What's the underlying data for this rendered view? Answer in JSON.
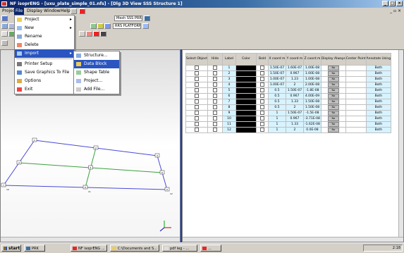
{
  "window": {
    "title": "NF isoprENG - [uxu_plate_simple_01.nfs] - [Dlg 3D View SSS Structure 1]"
  },
  "menubar": [
    "Projec",
    "File",
    "Display",
    "Window",
    "Help"
  ],
  "toolbar": {
    "selector1": "Mesh SSS PRR",
    "selector2": "RRS PLATFORM"
  },
  "file_menu": [
    {
      "label": "Project",
      "icon": "folder-icon",
      "submenu": true
    },
    {
      "label": "New",
      "icon": "new-icon",
      "submenu": true
    },
    {
      "label": "Rename",
      "icon": "rename-icon",
      "submenu": false
    },
    {
      "label": "Delete",
      "icon": "delete-icon",
      "submenu": false
    },
    {
      "label": "Import",
      "icon": "import-icon",
      "submenu": true,
      "highlighted": true
    },
    {
      "label": "Printer Setup",
      "icon": "printer-icon",
      "submenu": false
    },
    {
      "label": "Save Graphics To File",
      "icon": "save-icon",
      "submenu": false
    },
    {
      "label": "Options",
      "icon": "options-icon",
      "submenu": false
    },
    {
      "label": "Exit",
      "icon": "exit-icon",
      "submenu": false
    }
  ],
  "import_submenu": [
    {
      "label": "Structure...",
      "icon": "structure-icon"
    },
    {
      "label": "Data Block",
      "icon": "datablock-icon",
      "highlighted": true
    },
    {
      "label": "Shape Table",
      "icon": "shape-icon"
    },
    {
      "label": "Project...",
      "icon": "project-icon"
    },
    {
      "label": "Add File...",
      "icon": "addfile-icon"
    }
  ],
  "table": {
    "headers": [
      "Select Object",
      "Hide",
      "Label",
      "Color",
      "Bold",
      "X coord m",
      "Y coord m",
      "Z coord m",
      "Display Always",
      "Center Point",
      "Annotate Using"
    ],
    "rows": [
      {
        "label": "1",
        "x": "1.50E-07",
        "y": "1.60E-07",
        "z": "1.00E-08",
        "annot": "Both"
      },
      {
        "label": "2",
        "x": "1.50E-07",
        "y": "0.967",
        "z": "1.00E-08",
        "annot": "Both"
      },
      {
        "label": "3",
        "x": "1.00E-07",
        "y": "1.23",
        "z": "1.00E-08",
        "annot": "Both"
      },
      {
        "label": "4",
        "x": "1.00E-07",
        "y": "2",
        "z": "2.00E-08",
        "annot": "Both"
      },
      {
        "label": "5",
        "x": "0.5",
        "y": "1.50E-07",
        "z": "-1.8E-08",
        "annot": "Both"
      },
      {
        "label": "6",
        "x": "0.5",
        "y": "0.967",
        "z": "4.00E-09",
        "annot": "Both"
      },
      {
        "label": "7",
        "x": "0.5",
        "y": "1.33",
        "z": "1.50E-08",
        "annot": "Both"
      },
      {
        "label": "8",
        "x": "0.5",
        "y": "2",
        "z": "1.50E-08",
        "annot": "Both"
      },
      {
        "label": "9",
        "x": "1",
        "y": "1.50E-07",
        "z": "-1.5E-08",
        "annot": "Both"
      },
      {
        "label": "10",
        "x": "1",
        "y": "0.967",
        "z": "-3.71E-08",
        "annot": "Both"
      },
      {
        "label": "11",
        "x": "1",
        "y": "1.33",
        "z": "-1.62E-08",
        "annot": "Both"
      },
      {
        "label": "12",
        "x": "1",
        "y": "2",
        "z": "0.0E-08",
        "annot": "Both"
      }
    ],
    "display_value": "No"
  },
  "model": {
    "node_labels": [
      "1",
      "2",
      "3",
      "4",
      "5",
      "6",
      "7",
      "8",
      "9",
      "10",
      "11",
      "12"
    ]
  },
  "taskbar": {
    "start": "start",
    "items": [
      "PRK",
      "NF isoprENG ...",
      "C:\\Documents and S...",
      "pdf leg - ...",
      "..."
    ],
    "clock": "2:18"
  },
  "colors": {
    "title_bar": "#0a246a",
    "menu_highlight": "#2a55c0",
    "mesh_blue": "#4a4ad8",
    "mesh_green": "#3aa040"
  }
}
